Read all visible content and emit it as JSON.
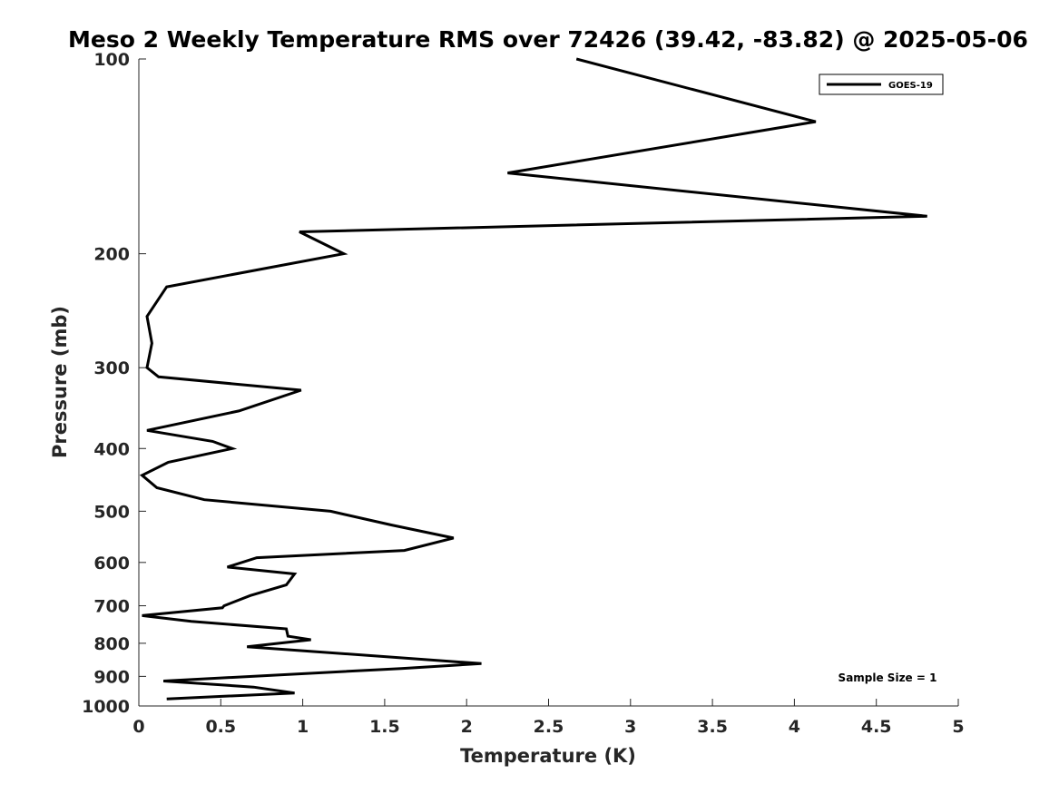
{
  "chart_data": {
    "type": "line",
    "title": "Meso 2 Weekly Temperature RMS over 72426 (39.42, -83.82) @ 2025-05-06",
    "xlabel": "Temperature (K)",
    "ylabel": "Pressure (mb)",
    "xlim": [
      0,
      5
    ],
    "ylim": [
      100,
      1000
    ],
    "y_scale": "log",
    "y_inverted": true,
    "grid": false,
    "x_ticks": [
      0,
      0.5,
      1,
      1.5,
      2,
      2.5,
      3,
      3.5,
      4,
      4.5,
      5
    ],
    "x_tick_labels": [
      "0",
      "0.5",
      "1",
      "1.5",
      "2",
      "2.5",
      "3",
      "3.5",
      "4",
      "4.5",
      "5"
    ],
    "y_ticks": [
      100,
      200,
      300,
      400,
      500,
      600,
      700,
      800,
      900,
      1000
    ],
    "y_tick_labels": [
      "100",
      "200",
      "300",
      "400",
      "500",
      "600",
      "700",
      "800",
      "900",
      "1000"
    ],
    "legend": {
      "placement": "top-right",
      "entries": [
        "GOES-19"
      ]
    },
    "annotation": "Sample Size = 1",
    "series": [
      {
        "name": "GOES-19",
        "color": "#000000",
        "points": [
          [
            2.67,
            100
          ],
          [
            4.13,
            125
          ],
          [
            2.25,
            150
          ],
          [
            4.81,
            175
          ],
          [
            0.98,
            185
          ],
          [
            1.25,
            200
          ],
          [
            0.17,
            225
          ],
          [
            0.05,
            250
          ],
          [
            0.08,
            275
          ],
          [
            0.05,
            300
          ],
          [
            0.12,
            310
          ],
          [
            0.99,
            325
          ],
          [
            0.61,
            350
          ],
          [
            0.05,
            375
          ],
          [
            0.45,
            390
          ],
          [
            0.57,
            400
          ],
          [
            0.18,
            420
          ],
          [
            0.02,
            440
          ],
          [
            0.11,
            460
          ],
          [
            0.4,
            480
          ],
          [
            1.17,
            500
          ],
          [
            1.54,
            525
          ],
          [
            1.92,
            550
          ],
          [
            1.62,
            575
          ],
          [
            0.72,
            590
          ],
          [
            0.54,
            610
          ],
          [
            0.95,
            625
          ],
          [
            0.9,
            650
          ],
          [
            0.68,
            675
          ],
          [
            0.52,
            700
          ],
          [
            0.51,
            705
          ],
          [
            0.02,
            725
          ],
          [
            0.32,
            740
          ],
          [
            0.9,
            760
          ],
          [
            0.91,
            780
          ],
          [
            1.05,
            790
          ],
          [
            0.66,
            810
          ],
          [
            2.09,
            860
          ],
          [
            1.6,
            875
          ],
          [
            0.15,
            915
          ],
          [
            0.7,
            935
          ],
          [
            0.95,
            955
          ],
          [
            0.17,
            975
          ]
        ]
      }
    ]
  }
}
